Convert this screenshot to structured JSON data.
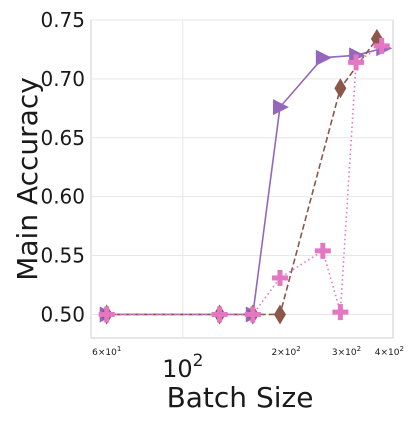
{
  "chart_data": {
    "type": "line",
    "xlabel": "Batch Size",
    "ylabel": "Main Accuracy",
    "xscale": "log",
    "xlim": [
      54,
      410
    ],
    "ylim": [
      0.48,
      0.75
    ],
    "grid": true,
    "yticks": [
      {
        "value": 0.5,
        "label": "0.50"
      },
      {
        "value": 0.55,
        "label": "0.55"
      },
      {
        "value": 0.6,
        "label": "0.60"
      },
      {
        "value": 0.65,
        "label": "0.65"
      },
      {
        "value": 0.7,
        "label": "0.70"
      },
      {
        "value": 0.75,
        "label": "0.75"
      }
    ],
    "xticks_major": [
      {
        "value": 100,
        "base": "10",
        "exp": "2"
      }
    ],
    "xticks_minor": [
      {
        "value": 60,
        "base": "6×10",
        "exp": "1"
      },
      {
        "value": 200,
        "base": "2×10",
        "exp": "2"
      },
      {
        "value": 300,
        "base": "3×10",
        "exp": "2"
      },
      {
        "value": 400,
        "base": "4×10",
        "exp": "2"
      }
    ],
    "series": [
      {
        "color": "#9467bd",
        "line_style": "solid",
        "marker": "triangle-right",
        "x": [
          60,
          160,
          192,
          256,
          320,
          384
        ],
        "y": [
          0.5,
          0.5,
          0.676,
          0.718,
          0.72,
          0.726
        ]
      },
      {
        "color": "#8c564b",
        "line_style": "dashed",
        "marker": "diamond",
        "x": [
          60,
          128,
          160,
          192,
          288,
          368
        ],
        "y": [
          0.5,
          0.5,
          0.5,
          0.5,
          0.692,
          0.734
        ]
      },
      {
        "color": "#e377c2",
        "line_style": "dotted",
        "marker": "plus",
        "x": [
          60,
          128,
          160,
          192,
          256,
          288,
          320,
          380
        ],
        "y": [
          0.5,
          0.5,
          0.5,
          0.531,
          0.554,
          0.502,
          0.714,
          0.728
        ]
      }
    ]
  }
}
